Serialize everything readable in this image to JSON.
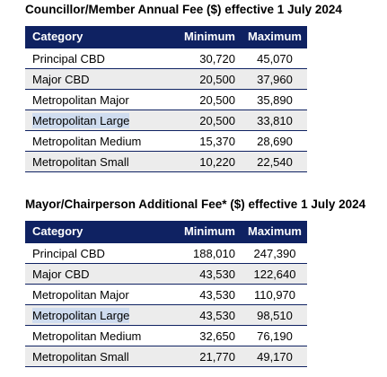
{
  "tables": [
    {
      "title": "Councillor/Member Annual Fee ($) effective 1 July 2024",
      "headers": {
        "category": "Category",
        "minimum": "Minimum",
        "maximum": "Maximum"
      },
      "rows": [
        {
          "category": "Principal CBD",
          "minimum": "30,720",
          "maximum": "45,070"
        },
        {
          "category": "Major CBD",
          "minimum": "20,500",
          "maximum": "37,960"
        },
        {
          "category": "Metropolitan Major",
          "minimum": "20,500",
          "maximum": "35,890"
        },
        {
          "category": "Metropolitan Large",
          "minimum": "20,500",
          "maximum": "33,810"
        },
        {
          "category": "Metropolitan Medium",
          "minimum": "15,370",
          "maximum": "28,690"
        },
        {
          "category": "Metropolitan Small",
          "minimum": "10,220",
          "maximum": "22,540"
        }
      ]
    },
    {
      "title": "Mayor/Chairperson Additional Fee* ($) effective 1 July 2024",
      "headers": {
        "category": "Category",
        "minimum": "Minimum",
        "maximum": "Maximum"
      },
      "rows": [
        {
          "category": "Principal CBD",
          "minimum": "188,010",
          "maximum": "247,390"
        },
        {
          "category": "Major CBD",
          "minimum": "43,530",
          "maximum": "122,640"
        },
        {
          "category": "Metropolitan Major",
          "minimum": "43,530",
          "maximum": "110,970"
        },
        {
          "category": "Metropolitan Large",
          "minimum": "43,530",
          "maximum": "98,510"
        },
        {
          "category": "Metropolitan Medium",
          "minimum": "32,650",
          "maximum": "76,190"
        },
        {
          "category": "Metropolitan Small",
          "minimum": "21,770",
          "maximum": "49,170"
        }
      ]
    }
  ],
  "colors": {
    "header_background": "#0f2262",
    "header_text": "#ffffff",
    "row_alt_background": "#ececec",
    "rule_color": "#0f2262",
    "text_highlight": "#cfdcef"
  }
}
